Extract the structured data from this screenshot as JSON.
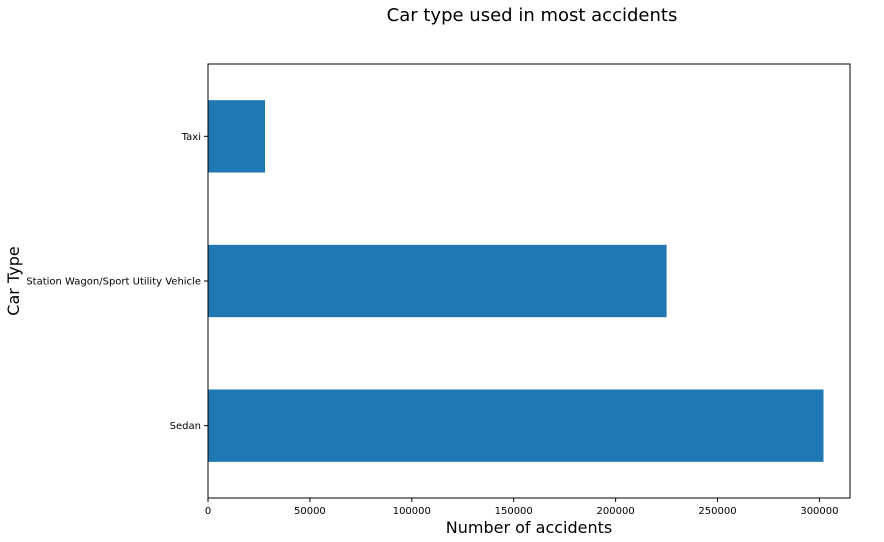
{
  "chart_data": {
    "type": "bar",
    "orientation": "horizontal",
    "title": "Car type used in most accidents",
    "xlabel": "Number of accidents",
    "ylabel": "Car Type",
    "categories": [
      "Taxi",
      "Station Wagon/Sport Utility Vehicle",
      "Sedan"
    ],
    "values": [
      28000,
      225000,
      302000
    ],
    "xlim": [
      0,
      315000
    ],
    "xticks": [
      0,
      50000,
      100000,
      150000,
      200000,
      250000,
      300000
    ],
    "xtick_labels": [
      "0",
      "50000",
      "100000",
      "150000",
      "200000",
      "250000",
      "300000"
    ],
    "bar_color": "#1f77b4",
    "grid": false
  }
}
